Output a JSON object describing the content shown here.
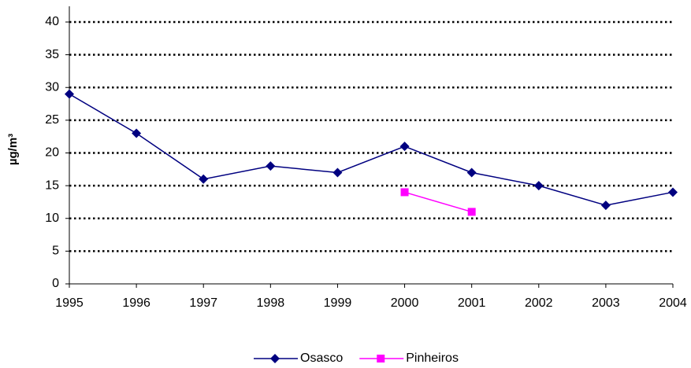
{
  "chart_data": {
    "type": "line",
    "y_label": "µg/m³",
    "x": [
      1995,
      1996,
      1997,
      1998,
      1999,
      2000,
      2001,
      2002,
      2003,
      2004
    ],
    "xlim": [
      1995,
      2004
    ],
    "xticks": [
      1995,
      1996,
      1997,
      1998,
      1999,
      2000,
      2001,
      2002,
      2003,
      2004
    ],
    "ylim": [
      0,
      40
    ],
    "yticks": [
      0,
      5,
      10,
      15,
      20,
      25,
      30,
      35,
      40
    ],
    "grid": true,
    "legend": "bottom",
    "series": [
      {
        "name": "Osasco",
        "color": "#000080",
        "marker": "diamond",
        "values": [
          29,
          23,
          16,
          18,
          17,
          21,
          17,
          15,
          12,
          14
        ]
      },
      {
        "name": "Pinheiros",
        "color": "#ff00ff",
        "marker": "square",
        "values": [
          null,
          null,
          null,
          null,
          null,
          14,
          11,
          null,
          null,
          null
        ]
      }
    ]
  }
}
